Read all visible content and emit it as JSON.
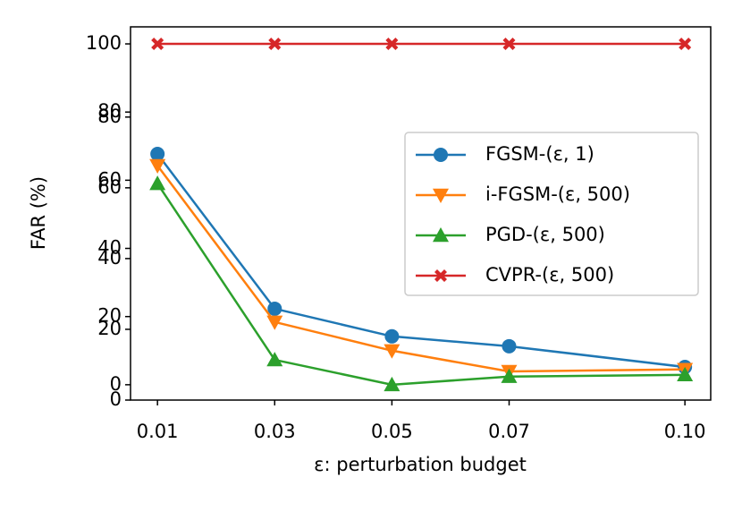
{
  "chart_data": {
    "type": "line",
    "x_label": "ε: perturbation budget",
    "y_label": "FAR (%)",
    "x": [
      0.01,
      0.03,
      0.05,
      0.07,
      0.1
    ],
    "xlim": [
      0.0054,
      0.1044
    ],
    "xticks": [
      0.01,
      0.03,
      0.05,
      0.07,
      {
        "value": 0.1,
        "label": "0.10"
      }
    ],
    "ylim": [
      -4.5,
      105
    ],
    "yticks": [
      0,
      20,
      40,
      60,
      80,
      100
    ],
    "y2lim": [
      0,
      105.5
    ],
    "y2ticks": [
      0,
      20,
      40,
      60,
      80
    ],
    "legend": "center right",
    "series": [
      {
        "name": "FGSM-(ε, 1)",
        "color": "#1f77b4",
        "marker": "o",
        "values": [
          67.7,
          22.3,
          14.2,
          11.3,
          5.2
        ]
      },
      {
        "name": "i-FGSM-(ε, 500)",
        "color": "#ff7f0e",
        "marker": "v",
        "values": [
          64.3,
          18.4,
          10,
          3.9,
          4.5
        ]
      },
      {
        "name": "PGD-(ε, 500)",
        "color": "#2ca02c",
        "marker": "^",
        "values": [
          59,
          7.3,
          0,
          2.4,
          2.9
        ]
      },
      {
        "name": "CVPR-(ε, 500)",
        "color": "#d62728",
        "marker": "X",
        "values": [
          100,
          100,
          100,
          100,
          100
        ]
      }
    ]
  }
}
